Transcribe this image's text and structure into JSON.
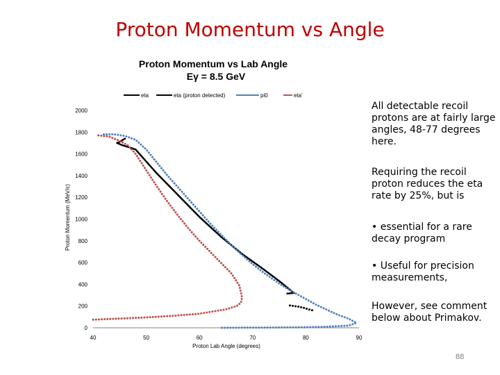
{
  "slide": {
    "title": "Proton Momentum vs Angle",
    "page_number": "88",
    "notes": [
      "All detectable recoil protons are at fairly large angles, 48-77 degrees here.",
      "Requiring the recoil proton reduces the eta rate by 25%, but is",
      "• essential for a rare decay program",
      "• Useful for precision measurements,",
      "However, see comment below about Primakov."
    ]
  },
  "chart_data": {
    "type": "scatter",
    "title": "Proton Momentum vs Lab Angle",
    "subtitle": "Eγ = 8.5 GeV",
    "xlabel": "Proton Lab Angle (degrees)",
    "ylabel": "Proton Momentum (MeV/c)",
    "xlim": [
      40,
      90
    ],
    "ylim": [
      0,
      2000
    ],
    "xticks": [
      40,
      50,
      60,
      70,
      80,
      90
    ],
    "yticks": [
      0,
      200,
      400,
      600,
      800,
      1000,
      1200,
      1400,
      1600,
      1800,
      2000
    ],
    "legend_position": "top",
    "series": [
      {
        "name": "eta",
        "color": "#000000",
        "style": "solid",
        "x": [
          46.0,
          45.6,
          45.2,
          44.5,
          45.5,
          46.8,
          48.0,
          52.0,
          56.0,
          60.0,
          64.0,
          68.0,
          72.0,
          75.0,
          76.5,
          77.5,
          77.8,
          77.2,
          76.5
        ],
        "y": [
          1740,
          1730,
          1715,
          1700,
          1680,
          1660,
          1640,
          1420,
          1220,
          1020,
          840,
          680,
          540,
          430,
          370,
          330,
          320,
          318,
          315
        ]
      },
      {
        "name": "eta (proton detected)",
        "color": "#000000",
        "style": "dotted",
        "x": [
          77.0,
          77.8,
          78.5,
          79.5,
          80.5,
          81.3
        ],
        "y": [
          205,
          200,
          195,
          185,
          170,
          160
        ]
      },
      {
        "name": "pi0",
        "color": "#4f81bd",
        "style": "dotted",
        "x": [
          42.0,
          44.0,
          46.0,
          48.0,
          50.0,
          52.0,
          54.0,
          56.0,
          58.0,
          60.0,
          62.0,
          64.0,
          66.0,
          68.0,
          70.0,
          72.0,
          74.0,
          76.0,
          78.0,
          80.0,
          82.0,
          84.0,
          86.0,
          88.0,
          89.5,
          88.0,
          84.0,
          80.0,
          76.0,
          72.0,
          68.0,
          64.0
        ],
        "y": [
          1780,
          1780,
          1765,
          1730,
          1640,
          1520,
          1400,
          1290,
          1180,
          1070,
          960,
          860,
          760,
          670,
          585,
          510,
          440,
          375,
          318,
          265,
          210,
          165,
          120,
          85,
          45,
          20,
          10,
          5,
          3,
          2,
          1,
          0
        ]
      },
      {
        "name": "eta'",
        "color": "#c0504d",
        "style": "dotted",
        "x": [
          41.0,
          43.0,
          45.0,
          46.5,
          48.0,
          50.0,
          52.0,
          54.0,
          56.0,
          58.0,
          60.0,
          62.0,
          64.0,
          66.0,
          67.5,
          68.0,
          67.8,
          67.0,
          65.0,
          60.0,
          55.0,
          50.0,
          45.0,
          40.0
        ],
        "y": [
          1770,
          1760,
          1720,
          1680,
          1600,
          1450,
          1300,
          1160,
          1030,
          910,
          800,
          700,
          600,
          500,
          390,
          280,
          230,
          200,
          170,
          130,
          110,
          95,
          85,
          75
        ]
      }
    ]
  }
}
